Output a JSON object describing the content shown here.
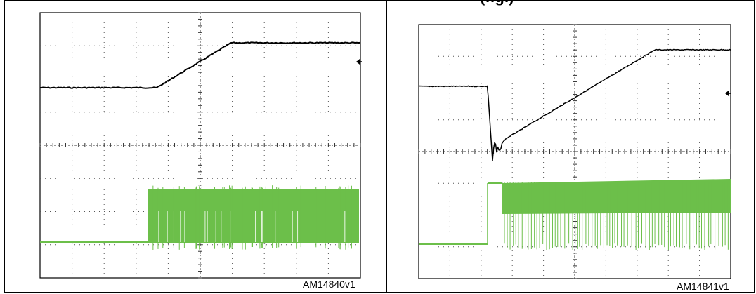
{
  "header": {
    "partial_label": "(fig.)"
  },
  "panels": [
    {
      "id_label": "AM14840v1"
    },
    {
      "id_label": "AM14841v1"
    }
  ],
  "colors": {
    "trace_top": "#000000",
    "trace_bottom": "#6cbf4a",
    "grid": "#555555",
    "border": "#000000"
  }
}
